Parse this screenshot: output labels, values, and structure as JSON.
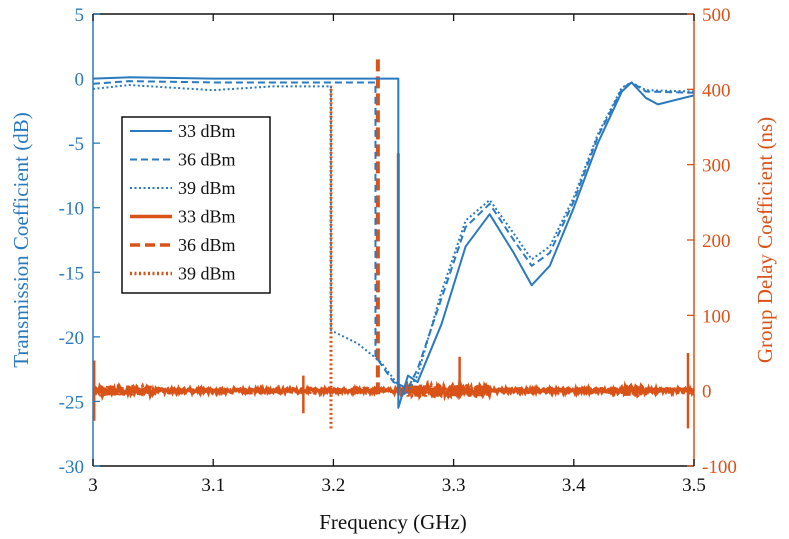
{
  "chart_data": {
    "type": "line",
    "xlabel": "Frequency (GHz)",
    "ylabel_left": "Transmission Coefficient (dB)",
    "ylabel_right": "Group Delay Coefficient (ns)",
    "xlim": [
      3,
      3.5
    ],
    "ylim_left": [
      -30,
      5
    ],
    "ylim_right": [
      -100,
      500
    ],
    "x_ticks": [
      "3",
      "3.1",
      "3.2",
      "3.3",
      "3.4",
      "3.5"
    ],
    "y_left_ticks": [
      "5",
      "0",
      "-5",
      "-10",
      "-15",
      "-20",
      "-25",
      "-30"
    ],
    "y_right_ticks": [
      "500",
      "400",
      "300",
      "200",
      "100",
      "0",
      "-100"
    ],
    "colors": {
      "transmission": "#2a7abf",
      "group_delay": "#d95319"
    },
    "legend": [
      {
        "label": "33 dBm",
        "color": "#2a7abf",
        "style": "solid"
      },
      {
        "label": "36 dBm",
        "color": "#2a7abf",
        "style": "dashed"
      },
      {
        "label": "39 dBm",
        "color": "#2a7abf",
        "style": "dotted"
      },
      {
        "label": "33 dBm",
        "color": "#d95319",
        "style": "solid"
      },
      {
        "label": "36 dBm",
        "color": "#d95319",
        "style": "dashed"
      },
      {
        "label": "39 dBm",
        "color": "#d95319",
        "style": "dotted"
      }
    ],
    "transmission_series": [
      {
        "name": "33 dBm",
        "style": "solid",
        "x": [
          3.0,
          3.03,
          3.1,
          3.2,
          3.254,
          3.254,
          3.262,
          3.27,
          3.29,
          3.31,
          3.33,
          3.35,
          3.365,
          3.38,
          3.4,
          3.42,
          3.44,
          3.448,
          3.46,
          3.47,
          3.5
        ],
        "y": [
          0.0,
          0.1,
          0.0,
          0.0,
          0.0,
          -25.5,
          -23.0,
          -23.5,
          -19.0,
          -13.0,
          -10.5,
          -13.5,
          -16.0,
          -14.5,
          -10.0,
          -5.0,
          -1.0,
          -0.3,
          -1.5,
          -2.0,
          -1.3
        ]
      },
      {
        "name": "36 dBm",
        "style": "dashed",
        "x": [
          3.0,
          3.03,
          3.1,
          3.2,
          3.235,
          3.235,
          3.25,
          3.262,
          3.27,
          3.29,
          3.31,
          3.33,
          3.35,
          3.365,
          3.38,
          3.4,
          3.42,
          3.44,
          3.448,
          3.46,
          3.5
        ],
        "y": [
          -0.4,
          -0.2,
          -0.3,
          -0.3,
          -0.3,
          -21.5,
          -23.5,
          -24.0,
          -22.5,
          -17.0,
          -11.5,
          -9.7,
          -12.5,
          -14.5,
          -13.5,
          -9.5,
          -4.5,
          -0.8,
          -0.3,
          -1.0,
          -1.1
        ]
      },
      {
        "name": "39 dBm",
        "style": "dotted",
        "x": [
          3.0,
          3.03,
          3.1,
          3.15,
          3.198,
          3.198,
          3.22,
          3.24,
          3.26,
          3.27,
          3.29,
          3.31,
          3.33,
          3.35,
          3.365,
          3.38,
          3.4,
          3.42,
          3.44,
          3.448,
          3.46,
          3.5
        ],
        "y": [
          -0.8,
          -0.5,
          -0.9,
          -0.6,
          -0.6,
          -19.5,
          -20.5,
          -22.0,
          -24.5,
          -23.0,
          -16.5,
          -11.0,
          -9.4,
          -12.0,
          -14.0,
          -13.0,
          -9.2,
          -4.3,
          -0.7,
          -0.3,
          -0.9,
          -1.0
        ]
      }
    ],
    "group_delay_series": [
      {
        "name": "33 dBm",
        "style": "solid",
        "spike_x": 3.254,
        "spike_top": 315,
        "spike_bottom": -5,
        "baseline": 0
      },
      {
        "name": "36 dBm",
        "style": "dashed",
        "spike_x": 3.237,
        "spike_top": 440,
        "spike_bottom": -5,
        "baseline": 0
      },
      {
        "name": "39 dBm",
        "style": "dotted",
        "spike_x": 3.198,
        "spike_top": 405,
        "spike_bottom": -50,
        "baseline": 0
      }
    ]
  }
}
